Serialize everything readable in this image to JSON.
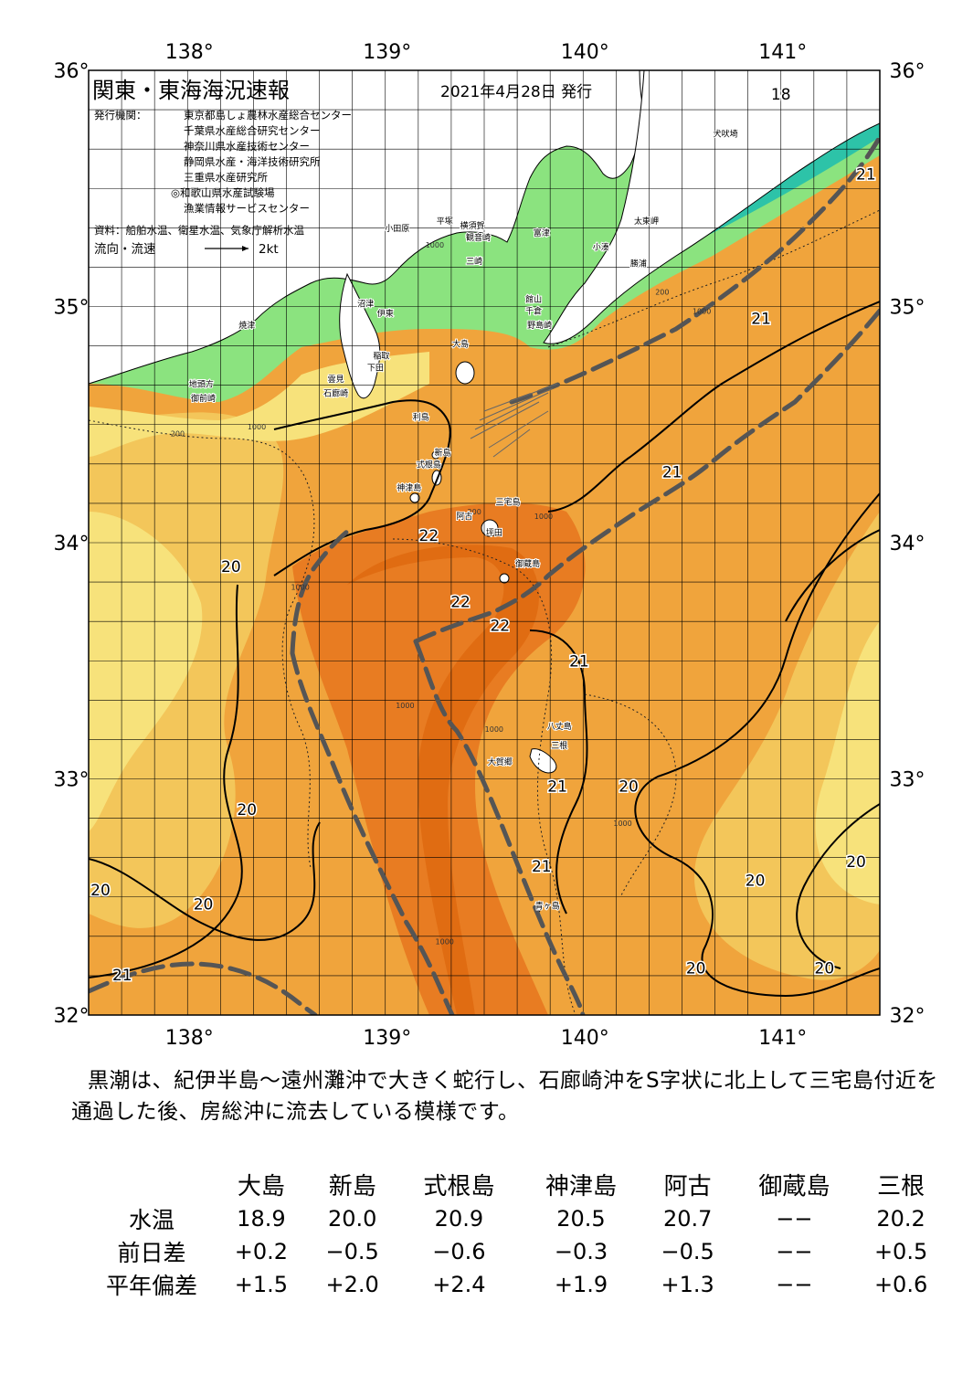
{
  "map": {
    "title": "関東・東海海況速報",
    "date": "2021年4月28日 発行",
    "publisher_label": "発行機関：",
    "publishers": [
      "東京都島しょ農林水産総合センター",
      "千葉県水産総合研究センター",
      "神奈川県水産技術センター",
      "静岡県水産・海洋技術研究所",
      "三重県水産研究所",
      "◎和歌山県水産試験場",
      "漁業情報サービスセンター"
    ],
    "source": "資料：船舶水温、衛星水温、気象庁解析水温",
    "flow_label": "流向・流速",
    "flow_scale": "2kt",
    "lon_labels": [
      "138°",
      "139°",
      "140°",
      "141°"
    ],
    "lat_labels": [
      "36°",
      "35°",
      "34°",
      "33°",
      "32°"
    ],
    "extent": {
      "lon": [
        137.5,
        141.5
      ],
      "lat": [
        32,
        36
      ]
    },
    "isotherm_labels": [
      {
        "text": "18",
        "lon": 141.0,
        "lat": 35.9
      },
      {
        "text": "21",
        "lon": 141.43,
        "lat": 35.56
      },
      {
        "text": "21",
        "lon": 140.9,
        "lat": 34.95
      },
      {
        "text": "21",
        "lon": 140.45,
        "lat": 34.3
      },
      {
        "text": "22",
        "lon": 139.22,
        "lat": 34.03
      },
      {
        "text": "20",
        "lon": 138.22,
        "lat": 33.9
      },
      {
        "text": "22",
        "lon": 139.38,
        "lat": 33.75
      },
      {
        "text": "22",
        "lon": 139.58,
        "lat": 33.65
      },
      {
        "text": "21",
        "lon": 139.98,
        "lat": 33.5
      },
      {
        "text": "21",
        "lon": 139.87,
        "lat": 32.97
      },
      {
        "text": "20",
        "lon": 140.23,
        "lat": 32.97
      },
      {
        "text": "20",
        "lon": 138.3,
        "lat": 32.87
      },
      {
        "text": "21",
        "lon": 139.79,
        "lat": 32.63
      },
      {
        "text": "20",
        "lon": 141.38,
        "lat": 32.65
      },
      {
        "text": "20",
        "lon": 137.56,
        "lat": 32.53
      },
      {
        "text": "20",
        "lon": 140.87,
        "lat": 32.57
      },
      {
        "text": "20",
        "lon": 138.08,
        "lat": 32.47
      },
      {
        "text": "20",
        "lon": 140.57,
        "lat": 32.2
      },
      {
        "text": "20",
        "lon": 141.22,
        "lat": 32.2
      },
      {
        "text": "21",
        "lon": 137.67,
        "lat": 32.17
      }
    ],
    "contour_labels": [
      {
        "text": "200",
        "lon": 137.95,
        "lat": 34.45
      },
      {
        "text": "1000",
        "lon": 138.35,
        "lat": 34.48
      },
      {
        "text": "1000",
        "lon": 138.57,
        "lat": 33.8
      },
      {
        "text": "1000",
        "lon": 139.1,
        "lat": 33.3
      },
      {
        "text": "1000",
        "lon": 139.55,
        "lat": 33.2
      },
      {
        "text": "1000",
        "lon": 140.2,
        "lat": 32.8
      },
      {
        "text": "1000",
        "lon": 139.3,
        "lat": 32.3
      },
      {
        "text": "1000",
        "lon": 139.8,
        "lat": 34.1
      },
      {
        "text": "1000",
        "lon": 140.6,
        "lat": 34.97
      },
      {
        "text": "200",
        "lon": 140.4,
        "lat": 35.05
      },
      {
        "text": "1000",
        "lon": 139.25,
        "lat": 35.25
      },
      {
        "text": "200",
        "lon": 139.45,
        "lat": 34.12
      }
    ],
    "place_labels": [
      {
        "text": "犬吠埼",
        "lon": 140.72,
        "lat": 35.72
      },
      {
        "text": "太東岬",
        "lon": 140.32,
        "lat": 35.35
      },
      {
        "text": "勝浦",
        "lon": 140.28,
        "lat": 35.17
      },
      {
        "text": "小湊",
        "lon": 140.09,
        "lat": 35.24
      },
      {
        "text": "小田原",
        "lon": 139.06,
        "lat": 35.32
      },
      {
        "text": "平塚",
        "lon": 139.3,
        "lat": 35.35
      },
      {
        "text": "横須賀",
        "lon": 139.44,
        "lat": 35.33
      },
      {
        "text": "富津",
        "lon": 139.79,
        "lat": 35.3
      },
      {
        "text": "観音崎",
        "lon": 139.47,
        "lat": 35.28
      },
      {
        "text": "三崎",
        "lon": 139.45,
        "lat": 35.18
      },
      {
        "text": "館山",
        "lon": 139.75,
        "lat": 35.02
      },
      {
        "text": "千倉",
        "lon": 139.75,
        "lat": 34.97
      },
      {
        "text": "野島崎",
        "lon": 139.78,
        "lat": 34.91
      },
      {
        "text": "沼津",
        "lon": 138.9,
        "lat": 35.0
      },
      {
        "text": "伊東",
        "lon": 139.0,
        "lat": 34.96
      },
      {
        "text": "焼津",
        "lon": 138.3,
        "lat": 34.91
      },
      {
        "text": "大島",
        "lon": 139.38,
        "lat": 34.83
      },
      {
        "text": "稲取",
        "lon": 138.98,
        "lat": 34.78
      },
      {
        "text": "下田",
        "lon": 138.95,
        "lat": 34.73
      },
      {
        "text": "地頭方",
        "lon": 138.07,
        "lat": 34.66
      },
      {
        "text": "雲見",
        "lon": 138.75,
        "lat": 34.68
      },
      {
        "text": "石廊崎",
        "lon": 138.75,
        "lat": 34.62
      },
      {
        "text": "御前崎",
        "lon": 138.08,
        "lat": 34.6
      },
      {
        "text": "利島",
        "lon": 139.18,
        "lat": 34.52
      },
      {
        "text": "新島",
        "lon": 139.29,
        "lat": 34.37
      },
      {
        "text": "式根島",
        "lon": 139.22,
        "lat": 34.32
      },
      {
        "text": "神津島",
        "lon": 139.12,
        "lat": 34.22
      },
      {
        "text": "三宅島",
        "lon": 139.62,
        "lat": 34.16
      },
      {
        "text": "阿古",
        "lon": 139.4,
        "lat": 34.1
      },
      {
        "text": "坪田",
        "lon": 139.55,
        "lat": 34.03
      },
      {
        "text": "御蔵島",
        "lon": 139.72,
        "lat": 33.9
      },
      {
        "text": "八丈島",
        "lon": 139.88,
        "lat": 33.21
      },
      {
        "text": "三根",
        "lon": 139.88,
        "lat": 33.13
      },
      {
        "text": "大賀郷",
        "lon": 139.58,
        "lat": 33.06
      },
      {
        "text": "青ヶ島",
        "lon": 139.82,
        "lat": 32.45
      }
    ],
    "colors": {
      "t18": "#2dc3a8",
      "t19": "#8be37f",
      "t19b": "#5fd36a",
      "t20": "#f7e27b",
      "t20b": "#f3c65a",
      "t21": "#f0a43c",
      "t21b": "#ee9431",
      "t22": "#e87c22",
      "t22b": "#e06c12",
      "land": "#ffffff",
      "kuroshio": "#555555"
    }
  },
  "description": "黒潮は、紀伊半島～遠州灘沖で大きく蛇行し、石廊崎沖をS字状に北上して三宅島付近を通過した後、房総沖に流去している模様です。",
  "table": {
    "stations": [
      "大島",
      "新島",
      "式根島",
      "神津島",
      "阿古",
      "御蔵島",
      "三根"
    ],
    "rows": [
      {
        "label": "水温",
        "values": [
          "18.9",
          "20.0",
          "20.9",
          "20.5",
          "20.7",
          "−−",
          "20.2"
        ]
      },
      {
        "label": "前日差",
        "values": [
          "+0.2",
          "−0.5",
          "−0.6",
          "−0.3",
          "−0.5",
          "−−",
          "+0.5"
        ]
      },
      {
        "label": "平年偏差",
        "values": [
          "+1.5",
          "+2.0",
          "+2.4",
          "+1.9",
          "+1.3",
          "−−",
          "+0.6"
        ]
      }
    ]
  }
}
